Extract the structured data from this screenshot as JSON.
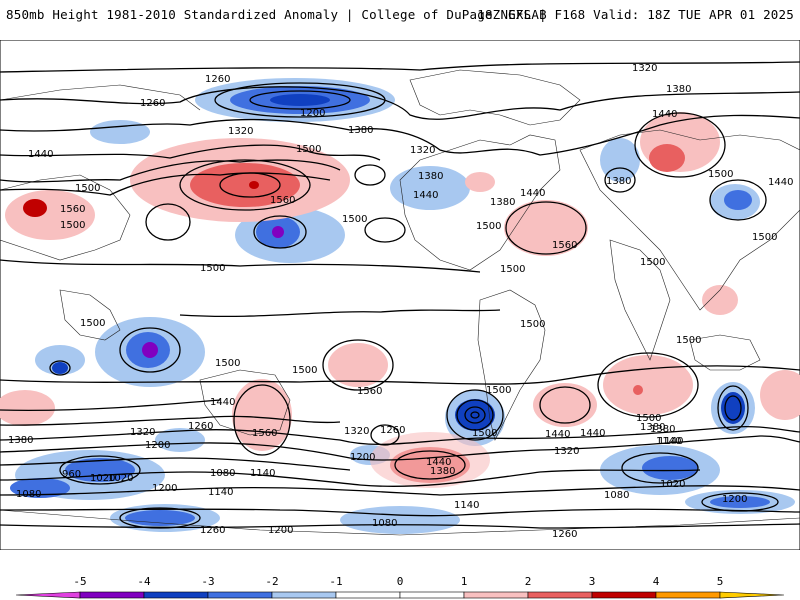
{
  "header": {
    "left_title": "850mb Height 1981-2010 Standardized Anomaly | College of DuPage NEXLAB",
    "right_title": "18Z GFS | F168 Valid: 18Z TUE APR 01 2025"
  },
  "map": {
    "contour_labels": [
      "1320",
      "1260",
      "1380",
      "1440",
      "1260",
      "1200",
      "1380",
      "1320",
      "1440",
      "1500",
      "1560",
      "1500",
      "1500",
      "1440",
      "1380",
      "1320",
      "1380",
      "1500",
      "1560",
      "1500",
      "1440",
      "1380",
      "1500",
      "1440",
      "1500",
      "1500",
      "1560",
      "1500",
      "1500",
      "1500",
      "1500",
      "1500",
      "1560",
      "1500",
      "1440",
      "1380",
      "1320",
      "1260",
      "1200",
      "1140",
      "1080",
      "1020",
      "960",
      "1440",
      "1380",
      "1320",
      "1260",
      "1200",
      "1140",
      "1080",
      "1260",
      "1320",
      "1380",
      "1440",
      "1500",
      "1140",
      "1020",
      "1080",
      "1200",
      "1260",
      "1200",
      "1140",
      "1080",
      "1440",
      "1380",
      "1140",
      "1020",
      "1200",
      "1560",
      "1500",
      "1500",
      "1500"
    ]
  },
  "colorbar": {
    "ticks": [
      "-5",
      "-4",
      "-3",
      "-2",
      "-1",
      "0",
      "1",
      "2",
      "3",
      "4",
      "5"
    ],
    "colors": [
      "#e040e0",
      "#8000c0",
      "#1040c0",
      "#4070e0",
      "#a8c8f0",
      "#ffffff",
      "#ffffff",
      "#f8c0c0",
      "#e86060",
      "#c00000",
      "#ff9900",
      "#ffcc00"
    ]
  }
}
